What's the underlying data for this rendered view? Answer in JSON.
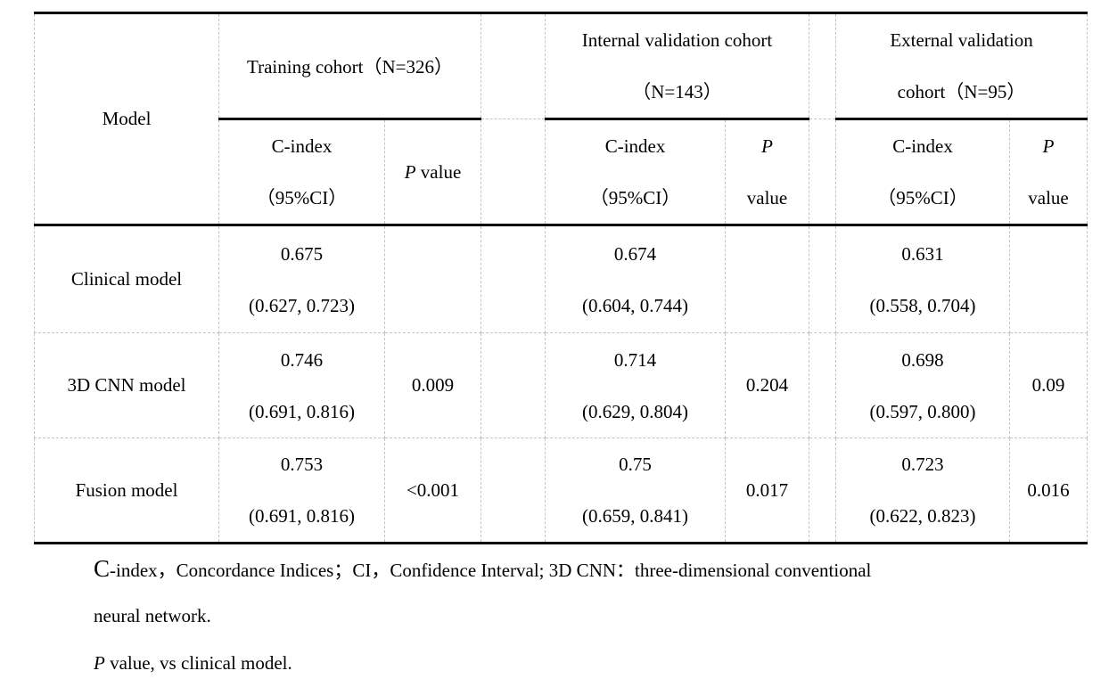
{
  "table": {
    "model_header": "Model",
    "groups": [
      {
        "line1": "Training cohort（N=326）",
        "line2": ""
      },
      {
        "line1": "Internal validation cohort",
        "line2": "（N=143）"
      },
      {
        "line1": "External validation",
        "line2": "cohort（N=95）"
      }
    ],
    "subheaders": {
      "cindex_line1": "C-index",
      "cindex_line2": "（95%CI）",
      "p_italic": "P",
      "p_single_rest": " value",
      "p_line2": "value"
    },
    "rows": [
      {
        "model": "Clinical model",
        "training": {
          "cindex": "0.675",
          "ci": "(0.627, 0.723)",
          "p": ""
        },
        "internal": {
          "cindex": "0.674",
          "ci": "(0.604, 0.744)",
          "p": ""
        },
        "external": {
          "cindex": "0.631",
          "ci": "(0.558, 0.704)",
          "p": ""
        }
      },
      {
        "model": "3D CNN model",
        "training": {
          "cindex": "0.746",
          "ci": "(0.691, 0.816)",
          "p": "0.009"
        },
        "internal": {
          "cindex": "0.714",
          "ci": "(0.629, 0.804)",
          "p": "0.204"
        },
        "external": {
          "cindex": "0.698",
          "ci": "(0.597, 0.800)",
          "p": "0.09"
        }
      },
      {
        "model": "Fusion model",
        "training": {
          "cindex": "0.753",
          "ci": "(0.691, 0.816)",
          "p": "<0.001"
        },
        "internal": {
          "cindex": "0.75",
          "ci": "(0.659, 0.841)",
          "p": "0.017"
        },
        "external": {
          "cindex": "0.723",
          "ci": "(0.622, 0.823)",
          "p": "0.016"
        }
      }
    ]
  },
  "footnotes": {
    "line1_initial": "C",
    "line1_rest": "-index，Concordance Indices；CI，Confidence Interval; 3D CNN：three-dimensional conventional",
    "line2": "neural network.",
    "line3_italic": "P",
    "line3_rest": " value, vs clinical model."
  },
  "colors": {
    "grid_line": "#c3c3c3",
    "rule_line": "#000000",
    "text": "#000000",
    "background": "#ffffff"
  }
}
